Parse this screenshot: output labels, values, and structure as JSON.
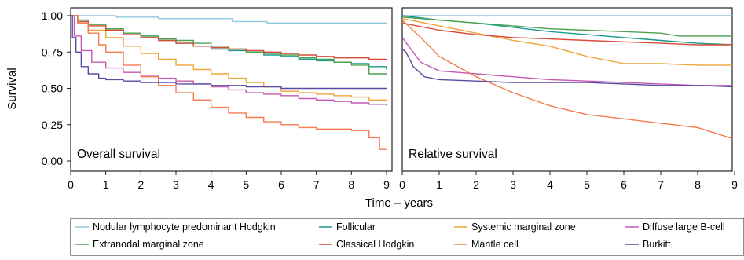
{
  "chart_data": [
    {
      "type": "line",
      "panel_label": "Overall survival",
      "ylabel": "Survival",
      "xlabel": "",
      "xlim": [
        0,
        9
      ],
      "ylim": [
        0,
        1
      ],
      "x_ticks": [
        "0",
        "1",
        "2",
        "3",
        "4",
        "5",
        "6",
        "7",
        "8",
        "9"
      ],
      "y_ticks": [
        "0.00",
        "0.25",
        "0.50",
        "0.75",
        "1.00"
      ],
      "grid": false,
      "step": true,
      "series": [
        {
          "name": "Nodular lymphocyte predominant Hodgkin",
          "color": "#8ec9dd",
          "x": [
            0,
            1.3,
            2.5,
            3.6,
            4.6,
            5.6,
            9
          ],
          "y": [
            1.0,
            0.99,
            0.98,
            0.98,
            0.96,
            0.95,
            0.95
          ]
        },
        {
          "name": "Follicular",
          "color": "#1a9a8e",
          "x": [
            0,
            0.2,
            0.5,
            1,
            1.5,
            2,
            2.5,
            3,
            3.5,
            4,
            4.5,
            5,
            5.5,
            6,
            6.5,
            7,
            7.5,
            8,
            8.5,
            9
          ],
          "y": [
            1.0,
            0.97,
            0.94,
            0.91,
            0.88,
            0.86,
            0.83,
            0.81,
            0.79,
            0.77,
            0.76,
            0.75,
            0.73,
            0.72,
            0.7,
            0.69,
            0.68,
            0.67,
            0.65,
            0.63
          ]
        },
        {
          "name": "Systemic marginal zone",
          "color": "#eea637",
          "x": [
            0,
            0.2,
            0.5,
            1,
            1.5,
            2,
            2.5,
            3,
            3.5,
            4,
            4.5,
            5,
            5.5,
            6,
            6.5,
            7,
            7.5,
            8,
            8.5,
            9
          ],
          "y": [
            1.0,
            0.95,
            0.9,
            0.85,
            0.79,
            0.74,
            0.7,
            0.66,
            0.63,
            0.6,
            0.57,
            0.54,
            0.51,
            0.48,
            0.47,
            0.46,
            0.45,
            0.44,
            0.42,
            0.41
          ]
        },
        {
          "name": "Diffuse large B-cell",
          "color": "#c559b3",
          "x": [
            0,
            0.1,
            0.3,
            0.6,
            1,
            1.5,
            2,
            2.5,
            3,
            3.5,
            4,
            4.5,
            5,
            5.5,
            6,
            6.5,
            7,
            7.5,
            8,
            8.5,
            9
          ],
          "y": [
            1.0,
            0.86,
            0.76,
            0.68,
            0.64,
            0.61,
            0.59,
            0.57,
            0.55,
            0.53,
            0.51,
            0.49,
            0.47,
            0.46,
            0.45,
            0.43,
            0.42,
            0.41,
            0.4,
            0.39,
            0.38
          ]
        },
        {
          "name": "Extranodal marginal zone",
          "color": "#4fa152",
          "x": [
            0,
            0.2,
            0.5,
            1,
            1.5,
            2,
            2.5,
            3,
            3.5,
            4,
            4.5,
            5,
            5.5,
            6,
            6.5,
            7,
            7.5,
            8,
            8.5,
            9
          ],
          "y": [
            1.0,
            0.97,
            0.94,
            0.91,
            0.88,
            0.86,
            0.84,
            0.83,
            0.81,
            0.79,
            0.77,
            0.75,
            0.74,
            0.73,
            0.71,
            0.7,
            0.68,
            0.66,
            0.6,
            0.59
          ]
        },
        {
          "name": "Classical Hodgkin",
          "color": "#d94a37",
          "x": [
            0,
            0.2,
            0.5,
            1,
            1.5,
            2,
            2.5,
            3,
            3.5,
            4,
            4.5,
            5,
            5.5,
            6,
            6.5,
            7,
            7.5,
            8,
            8.5,
            9
          ],
          "y": [
            1.0,
            0.96,
            0.93,
            0.9,
            0.87,
            0.85,
            0.83,
            0.81,
            0.79,
            0.78,
            0.77,
            0.76,
            0.75,
            0.74,
            0.73,
            0.72,
            0.71,
            0.71,
            0.7,
            0.7
          ]
        },
        {
          "name": "Mantle cell",
          "color": "#f47c4e",
          "x": [
            0,
            0.2,
            0.5,
            0.8,
            1,
            1.5,
            2,
            2.5,
            3,
            3.5,
            4,
            4.5,
            5,
            5.5,
            6,
            6.5,
            7,
            7.5,
            8,
            8.5,
            8.8,
            9
          ],
          "y": [
            1.0,
            0.95,
            0.88,
            0.8,
            0.75,
            0.66,
            0.58,
            0.52,
            0.47,
            0.42,
            0.37,
            0.33,
            0.3,
            0.27,
            0.25,
            0.23,
            0.22,
            0.22,
            0.21,
            0.16,
            0.08,
            0.08
          ]
        },
        {
          "name": "Burkitt",
          "color": "#5b4aa3",
          "x": [
            0,
            0.05,
            0.15,
            0.3,
            0.5,
            0.8,
            1,
            1.5,
            2,
            3,
            4,
            5,
            6,
            7,
            8,
            9
          ],
          "y": [
            1.0,
            0.85,
            0.75,
            0.65,
            0.6,
            0.57,
            0.56,
            0.55,
            0.54,
            0.53,
            0.52,
            0.51,
            0.5,
            0.5,
            0.5,
            0.5
          ]
        }
      ]
    },
    {
      "type": "line",
      "panel_label": "Relative survival",
      "ylabel": "",
      "xlabel": "",
      "xlim": [
        0,
        9
      ],
      "ylim": [
        0,
        1
      ],
      "x_ticks": [
        "0",
        "1",
        "2",
        "3",
        "4",
        "5",
        "6",
        "7",
        "8",
        "9"
      ],
      "grid": false,
      "step": false,
      "series": [
        {
          "name": "Nodular lymphocyte predominant Hodgkin",
          "color": "#8ec9dd",
          "x": [
            0,
            1,
            9
          ],
          "y": [
            1.0,
            1.0,
            1.0
          ]
        },
        {
          "name": "Follicular",
          "color": "#1a9a8e",
          "x": [
            0,
            1,
            2,
            3,
            4,
            5,
            6,
            7,
            8,
            9
          ],
          "y": [
            1.0,
            0.97,
            0.95,
            0.92,
            0.89,
            0.87,
            0.85,
            0.83,
            0.81,
            0.8
          ]
        },
        {
          "name": "Systemic marginal zone",
          "color": "#eea637",
          "x": [
            0,
            1,
            2,
            3,
            4,
            5,
            6,
            7,
            8,
            9
          ],
          "y": [
            0.98,
            0.93,
            0.88,
            0.83,
            0.79,
            0.72,
            0.67,
            0.67,
            0.66,
            0.66
          ]
        },
        {
          "name": "Diffuse large B-cell",
          "color": "#c559b3",
          "x": [
            0,
            0.5,
            1,
            2,
            3,
            4,
            5,
            6,
            7,
            8,
            9
          ],
          "y": [
            0.85,
            0.68,
            0.62,
            0.6,
            0.58,
            0.56,
            0.55,
            0.54,
            0.53,
            0.52,
            0.52
          ]
        },
        {
          "name": "Extranodal marginal zone",
          "color": "#4fa152",
          "x": [
            0,
            1,
            2,
            3,
            4,
            5,
            6,
            7,
            7.5,
            8,
            9
          ],
          "y": [
            0.99,
            0.97,
            0.95,
            0.93,
            0.91,
            0.9,
            0.89,
            0.88,
            0.86,
            0.86,
            0.86
          ]
        },
        {
          "name": "Classical Hodgkin",
          "color": "#d94a37",
          "x": [
            0,
            1,
            2,
            3,
            4,
            5,
            6,
            7,
            8,
            9
          ],
          "y": [
            0.95,
            0.9,
            0.87,
            0.85,
            0.84,
            0.83,
            0.82,
            0.81,
            0.8,
            0.8
          ]
        },
        {
          "name": "Mantle cell",
          "color": "#f47c4e",
          "x": [
            0,
            0.5,
            1,
            2,
            3,
            4,
            5,
            6,
            7,
            8,
            9
          ],
          "y": [
            0.97,
            0.85,
            0.72,
            0.58,
            0.47,
            0.38,
            0.32,
            0.29,
            0.26,
            0.23,
            0.15
          ]
        },
        {
          "name": "Burkitt",
          "color": "#5b4aa3",
          "x": [
            0,
            0.1,
            0.3,
            0.6,
            1,
            2,
            3,
            4,
            5,
            6,
            7,
            8,
            9
          ],
          "y": [
            0.77,
            0.75,
            0.65,
            0.58,
            0.56,
            0.55,
            0.54,
            0.54,
            0.54,
            0.53,
            0.52,
            0.52,
            0.51
          ]
        }
      ]
    }
  ],
  "shared_xlabel": "Time – years",
  "legend": {
    "placement": "bottom",
    "items": [
      {
        "label": "Nodular lymphocyte predominant Hodgkin",
        "color": "#8ec9dd"
      },
      {
        "label": "Follicular",
        "color": "#1a9a8e"
      },
      {
        "label": "Systemic marginal zone",
        "color": "#eea637"
      },
      {
        "label": "Diffuse large B-cell",
        "color": "#c559b3"
      },
      {
        "label": "Extranodal marginal zone",
        "color": "#4fa152"
      },
      {
        "label": "Classical Hodgkin",
        "color": "#d94a37"
      },
      {
        "label": "Mantle cell",
        "color": "#f47c4e"
      },
      {
        "label": "Burkitt",
        "color": "#5b4aa3"
      }
    ]
  }
}
